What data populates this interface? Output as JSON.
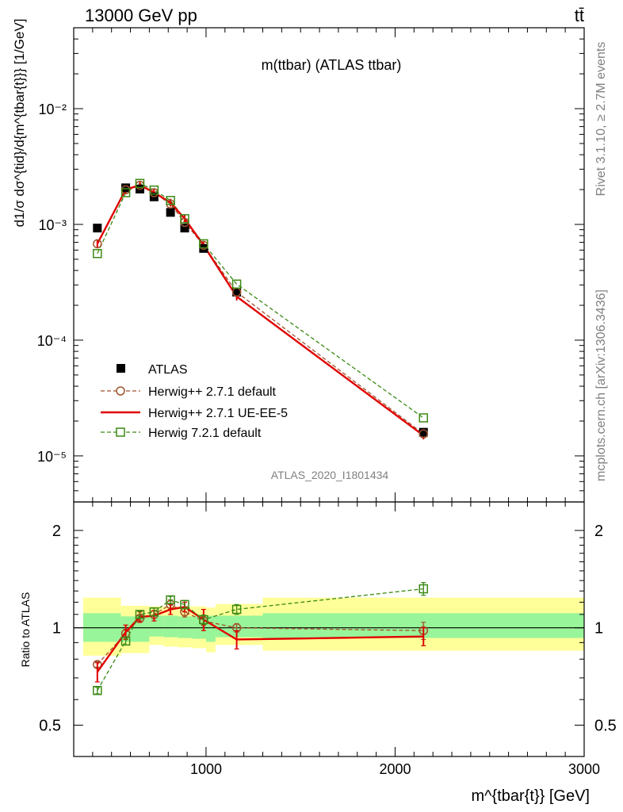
{
  "header": {
    "energy": "13000 GeV pp",
    "process": "tt̄"
  },
  "side": {
    "rivet": "Rivet 3.1.10, ≥ 2.7M events",
    "source": "mcplots.cern.ch [arXiv:1306.3436]"
  },
  "chart_data": [
    {
      "type": "scatter",
      "title": "m(ttbar) (ATLAS ttbar)",
      "watermark": "ATLAS_2020_I1801434",
      "ylabel": "d1/σ dσ^{tid}/d{m^{tbar{t}}} [1/GeV]",
      "yscale": "log",
      "ylim": [
        4e-06,
        0.05
      ],
      "xlim": [
        300,
        3000
      ],
      "y_ticks": [
        {
          "value": 1e-05,
          "label": "10⁻⁵"
        },
        {
          "value": 0.0001,
          "label": "10⁻⁴"
        },
        {
          "value": 0.001,
          "label": "10⁻³"
        },
        {
          "value": 0.01,
          "label": "10⁻²"
        }
      ],
      "x": [
        425,
        575,
        650,
        725,
        812,
        887,
        987,
        1162,
        2150
      ],
      "series": [
        {
          "name": "ATLAS",
          "color": "#000000",
          "marker": "filled-square",
          "values": [
            0.00093,
            0.00207,
            0.00202,
            0.00173,
            0.00127,
            0.00093,
            0.00062,
            0.00026,
            1.6e-05
          ]
        },
        {
          "name": "Herwig++ 2.7.1 default",
          "color": "#a0522d",
          "marker": "open-circle",
          "line": "dashed",
          "values": [
            0.00068,
            0.00199,
            0.00218,
            0.00188,
            0.0015,
            0.00104,
            0.00066,
            0.00026,
            1.55e-05
          ]
        },
        {
          "name": "Herwig++ 2.7.1 UE-EE-5",
          "color": "#e00000",
          "marker": "none",
          "line": "solid",
          "values": [
            0.00068,
            0.002,
            0.00218,
            0.00189,
            0.00154,
            0.00112,
            0.00066,
            0.000238,
            1.5e-05
          ]
        },
        {
          "name": "Herwig 7.2.1 default",
          "color": "#3a8a14",
          "marker": "open-square",
          "line": "dashed",
          "values": [
            0.00056,
            0.00188,
            0.00226,
            0.00198,
            0.00161,
            0.00112,
            0.00068,
            0.000305,
            2.13e-05
          ]
        }
      ]
    },
    {
      "type": "scatter",
      "ylabel": "Ratio to ATLAS",
      "xlabel": "m^{tbar{t}} [GeV]",
      "yscale": "log",
      "ylim": [
        0.4,
        2.45
      ],
      "xlim": [
        300,
        3000
      ],
      "y_ticks": [
        {
          "value": 0.5,
          "label": "0.5"
        },
        {
          "value": 1,
          "label": "1"
        },
        {
          "value": 2,
          "label": "2"
        }
      ],
      "x_ticks": [
        {
          "value": 1000,
          "label": "1000"
        },
        {
          "value": 2000,
          "label": "2000"
        },
        {
          "value": 3000,
          "label": "3000"
        }
      ],
      "x": [
        425,
        575,
        650,
        725,
        812,
        887,
        987,
        1162,
        2150
      ],
      "bins": [
        [
          350,
          550
        ],
        [
          550,
          700
        ],
        [
          700,
          775
        ],
        [
          775,
          850
        ],
        [
          850,
          925
        ],
        [
          925,
          1000
        ],
        [
          1000,
          1050
        ],
        [
          1050,
          1300
        ],
        [
          1300,
          3000
        ]
      ],
      "band_inner": [
        [
          0.905,
          1.11
        ],
        [
          0.905,
          1.085
        ],
        [
          0.94,
          1.09
        ],
        [
          0.935,
          1.09
        ],
        [
          0.93,
          1.085
        ],
        [
          0.925,
          1.085
        ],
        [
          0.905,
          1.09
        ],
        [
          0.935,
          1.09
        ],
        [
          0.93,
          1.11
        ]
      ],
      "band_outer": [
        [
          0.82,
          1.24
        ],
        [
          0.835,
          1.17
        ],
        [
          0.885,
          1.165
        ],
        [
          0.875,
          1.165
        ],
        [
          0.87,
          1.165
        ],
        [
          0.865,
          1.165
        ],
        [
          0.84,
          1.155
        ],
        [
          0.885,
          1.185
        ],
        [
          0.85,
          1.24
        ]
      ],
      "series": [
        {
          "name": "Herwig++ 2.7.1 default",
          "color": "#a0522d",
          "values": [
            0.77,
            0.96,
            1.07,
            1.1,
            1.18,
            1.12,
            1.05,
            1.0,
            0.98
          ],
          "err": [
            0.015,
            0.03,
            0.02,
            0.03,
            0.04,
            0.04,
            0.035,
            0.03,
            0.06
          ]
        },
        {
          "name": "Herwig++ 2.7.1 UE-EE-5",
          "color": "#e00000",
          "values": [
            0.73,
            0.97,
            1.08,
            1.09,
            1.14,
            1.16,
            1.06,
            0.92,
            0.94
          ],
          "err": [
            0.05,
            0.05,
            0.04,
            0.04,
            0.04,
            0.04,
            0.08,
            0.06,
            0.06
          ]
        },
        {
          "name": "Herwig 7.2.1 default",
          "color": "#3a8a14",
          "values": [
            0.64,
            0.91,
            1.1,
            1.12,
            1.22,
            1.18,
            1.06,
            1.14,
            1.32
          ],
          "err": [
            0.015,
            0.025,
            0.025,
            0.03,
            0.03,
            0.035,
            0.035,
            0.04,
            0.06
          ]
        }
      ]
    }
  ]
}
